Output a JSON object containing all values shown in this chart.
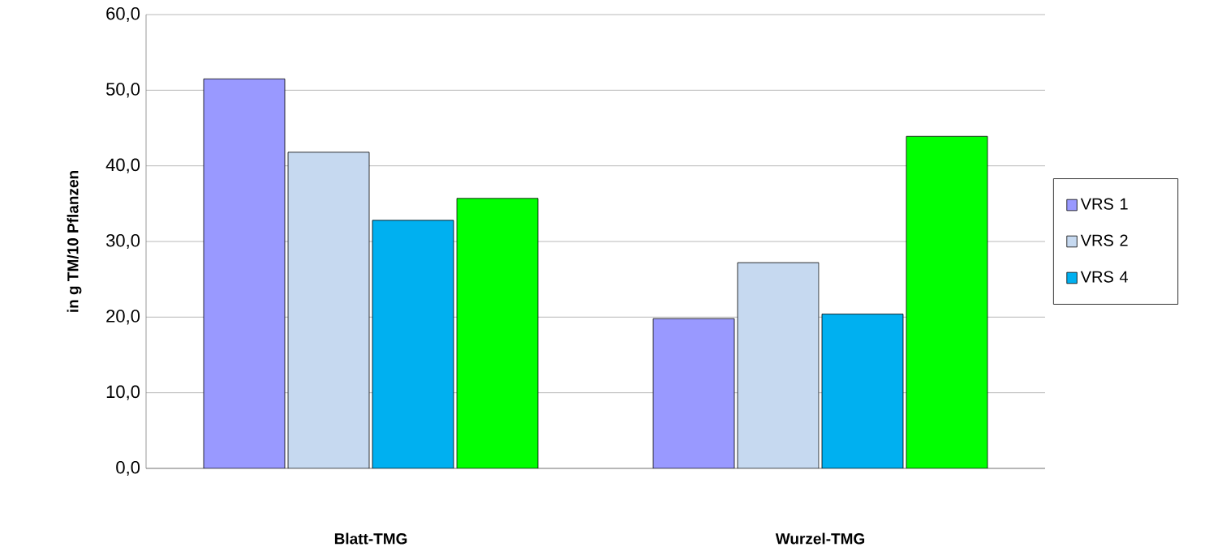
{
  "chart_data": {
    "type": "bar",
    "ylabel": "in g TM/10 Pflanzen",
    "categories": [
      "Blatt-TMG",
      "Wurzel-TMG"
    ],
    "series": [
      {
        "name": "VRS 1",
        "color": "#9999ff",
        "values": [
          51.5,
          19.8
        ]
      },
      {
        "name": "VRS 2",
        "color": "#c6d9f0",
        "values": [
          41.8,
          27.2
        ]
      },
      {
        "name": "VRS 4",
        "color": "#00b0f0",
        "values": [
          32.8,
          20.4
        ]
      },
      {
        "color": "#00ff00",
        "values": [
          35.7,
          43.9
        ]
      }
    ],
    "ylim": [
      0,
      60
    ],
    "yticks": [
      {
        "value": 0,
        "label": "0,0"
      },
      {
        "value": 10,
        "label": "10,0"
      },
      {
        "value": 20,
        "label": "20,0"
      },
      {
        "value": 30,
        "label": "30,0"
      },
      {
        "value": 40,
        "label": "40,0"
      },
      {
        "value": 50,
        "label": "50,0"
      },
      {
        "value": 60,
        "label": "60,0"
      }
    ],
    "grid": "y",
    "legend": "right"
  }
}
